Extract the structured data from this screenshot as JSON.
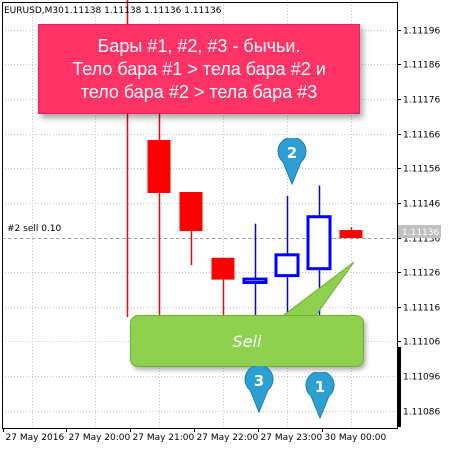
{
  "header": {
    "symbol_tf": "EURUSD,M30",
    "prices": "1.11138 1.11138 1.11136 1.11136"
  },
  "callout": {
    "lines": [
      "Бары #1, #2, #3 - бычьи.",
      "Тело бара #1 > тела бара #2 и",
      "тело бара #2 > тела бара #3"
    ]
  },
  "sell_label": "Sell",
  "order_label": "#2 sell 0.10",
  "current_price_label": "1.11136",
  "markers": [
    {
      "label": "1"
    },
    {
      "label": "2"
    },
    {
      "label": "3"
    }
  ],
  "colors": {
    "bear": "#ff0000",
    "bull": "#0000ff",
    "callout": "#ff3366",
    "sell": "#8fd14f",
    "marker": "#2d9fd0"
  },
  "chart_data": {
    "type": "candlestick",
    "title": "",
    "xlabel": "",
    "ylabel": "",
    "ylim": [
      1.11081,
      1.11204
    ],
    "y_ticks": [
      "1.11196",
      "1.11186",
      "1.11176",
      "1.11166",
      "1.11156",
      "1.11146",
      "1.11136",
      "1.11126",
      "1.11116",
      "1.11106",
      "1.11096",
      "1.11086"
    ],
    "x_ticks": [
      "27 May 2016",
      "27 May 20:00",
      "27 May 21:00",
      "27 May 22:00",
      "27 May 23:00",
      "30 May 00:00"
    ],
    "candles": [
      {
        "open": 1.11208,
        "high": 1.11208,
        "low": 1.11113,
        "close": 1.11208
      },
      {
        "open": 1.11164,
        "high": 1.11175,
        "low": 1.11113,
        "close": 1.11149
      },
      {
        "open": 1.11149,
        "high": 1.11149,
        "low": 1.11128,
        "close": 1.11138
      },
      {
        "open": 1.1113,
        "high": 1.1113,
        "low": 1.11108,
        "close": 1.11124
      },
      {
        "open": 1.11123,
        "high": 1.1114,
        "low": 1.11113,
        "close": 1.11124
      },
      {
        "open": 1.11125,
        "high": 1.11148,
        "low": 1.11112,
        "close": 1.11131
      },
      {
        "open": 1.11127,
        "high": 1.11151,
        "low": 1.11113,
        "close": 1.11142
      },
      {
        "open": 1.11138,
        "high": 1.11139,
        "low": 1.11136,
        "close": 1.11136
      }
    ],
    "order_line": 1.11136,
    "current_price": 1.11136,
    "grid": true
  }
}
